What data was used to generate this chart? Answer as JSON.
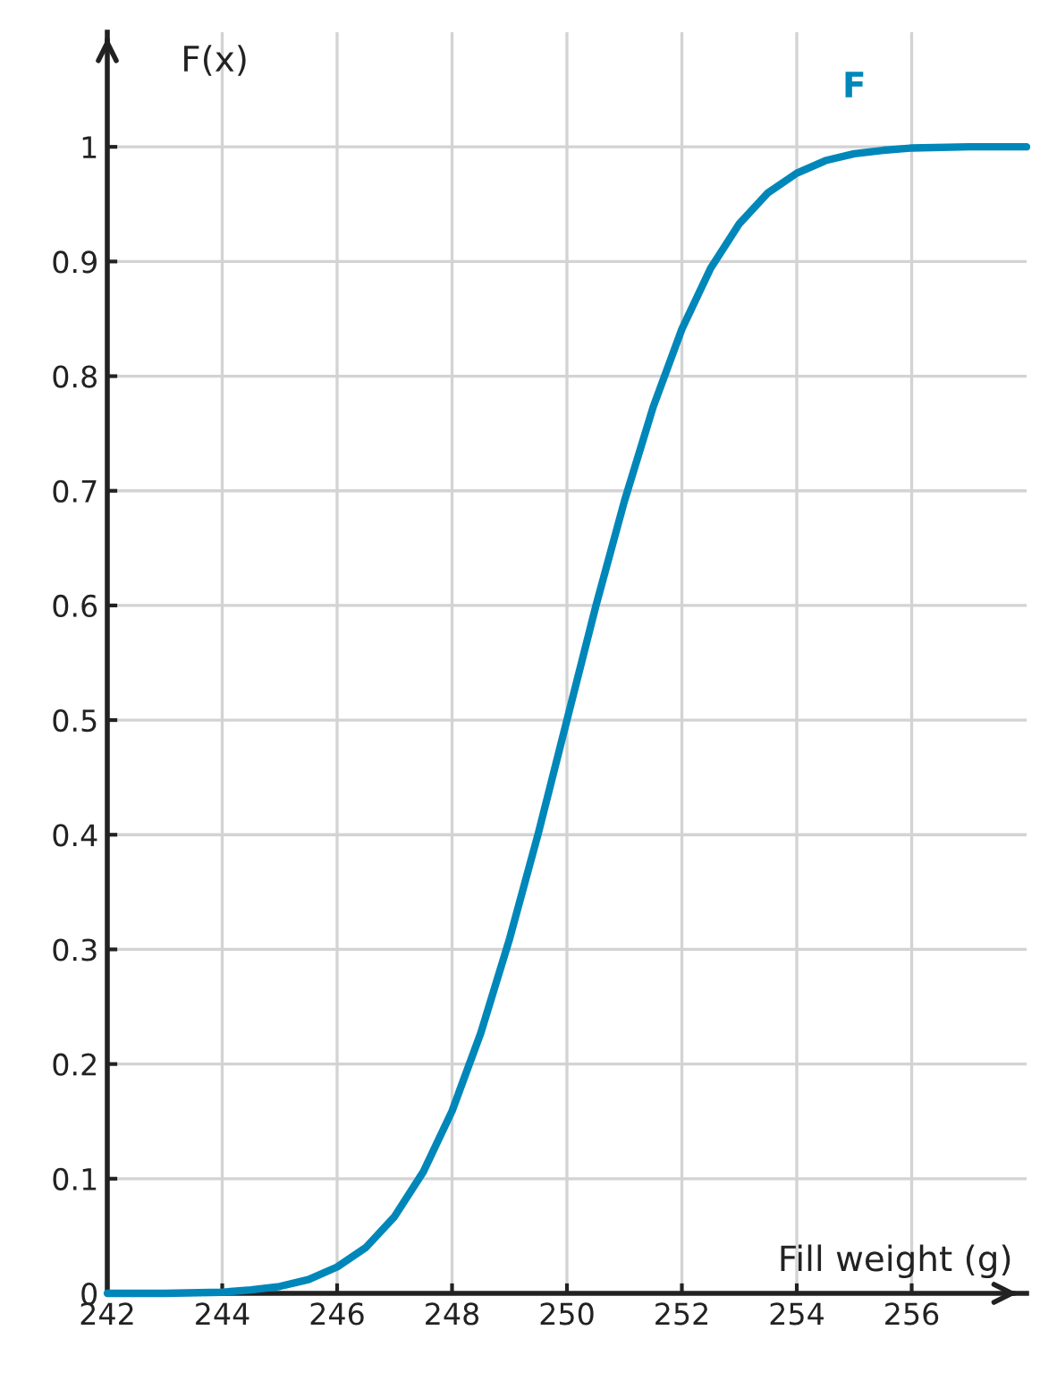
{
  "chart_data": {
    "type": "line",
    "xlabel": "Fill weight (g)",
    "ylabel": "F(x)",
    "xlim": [
      242,
      258
    ],
    "ylim": [
      0,
      1.1
    ],
    "xticks": [
      242,
      244,
      246,
      248,
      250,
      252,
      254,
      256
    ],
    "yticks": [
      0,
      0.1,
      0.2,
      0.3,
      0.4,
      0.5,
      0.6,
      0.7,
      0.8,
      0.9,
      1
    ],
    "grid": true,
    "legend": false,
    "marker": "none",
    "line_style": "solid",
    "series": [
      {
        "name": "F",
        "color": "#0087b9",
        "x": [
          242,
          243,
          244,
          244.5,
          245,
          245.5,
          246,
          246.5,
          247,
          247.5,
          248,
          248.5,
          249,
          249.5,
          250,
          250.5,
          251,
          251.5,
          252,
          252.5,
          253,
          253.5,
          254,
          254.5,
          255,
          255.5,
          256,
          257,
          258
        ],
        "values": [
          0,
          0,
          0.001,
          0.003,
          0.006,
          0.012,
          0.023,
          0.04,
          0.067,
          0.106,
          0.159,
          0.227,
          0.309,
          0.401,
          0.5,
          0.599,
          0.691,
          0.773,
          0.841,
          0.894,
          0.933,
          0.96,
          0.977,
          0.988,
          0.994,
          0.997,
          0.999,
          1,
          1
        ]
      }
    ]
  }
}
